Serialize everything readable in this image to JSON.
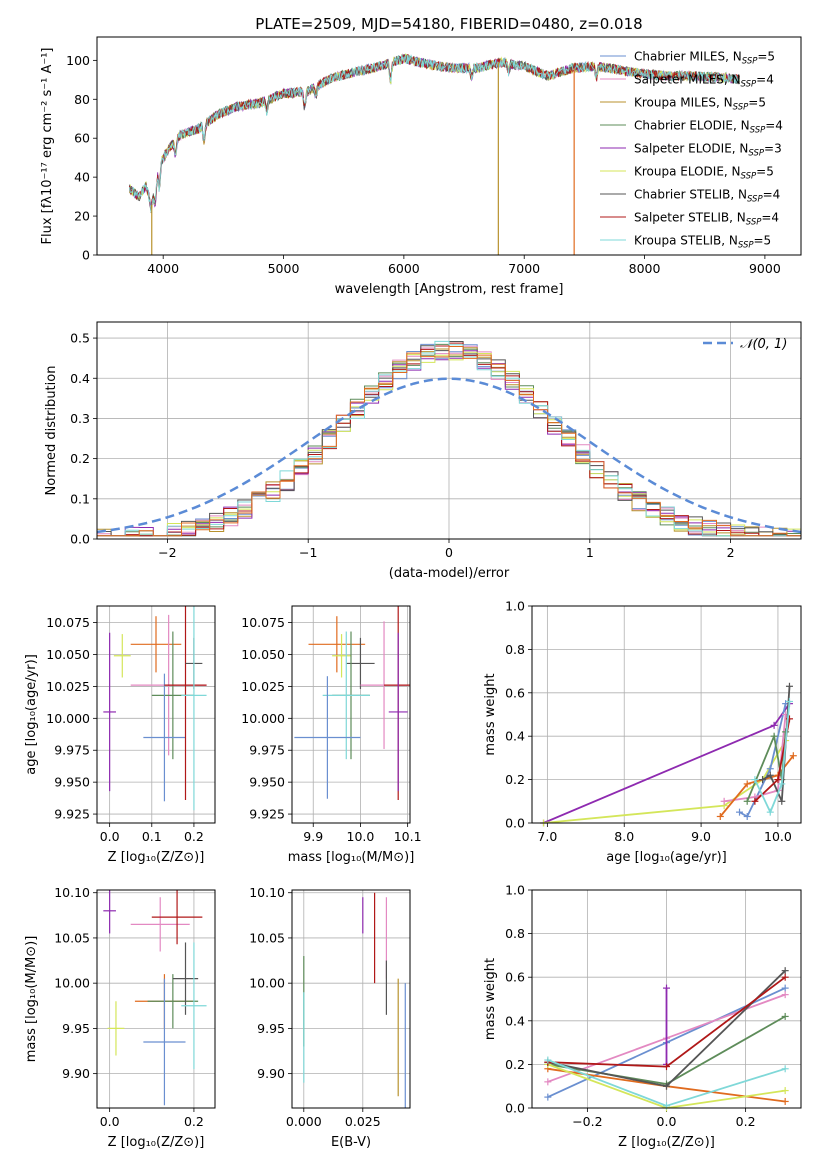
{
  "figure_title": "PLATE=2509, MJD=54180, FIBERID=0480, z=0.018",
  "colors": {
    "Chabrier MILES": "#6a8fd0",
    "Salpeter MILES": "#e389c2",
    "Kroupa MILES": "#b8922e",
    "Chabrier ELODIE": "#5e8c5a",
    "Salpeter ELODIE": "#8e2ab0",
    "Kroupa ELODIE": "#d4e65a",
    "Chabrier STELIB": "#555555",
    "Salpeter STELIB": "#b01818",
    "Kroupa STELIB": "#7fd8d8",
    "extra": "#e06b1f",
    "normal": "#5b8bd6"
  },
  "chart_data": [
    {
      "id": "spectrum",
      "type": "line",
      "title": "PLATE=2509, MJD=54180, FIBERID=0480, z=0.018",
      "xlabel": "wavelength [Angstrom, rest frame]",
      "ylabel": "Flux [fλ10⁻¹⁷ erg cm⁻² s⁻¹ A⁻¹]",
      "xlim": [
        3450,
        9300
      ],
      "ylim": [
        0,
        112
      ],
      "xticks": [
        4000,
        5000,
        6000,
        7000,
        8000,
        9000
      ],
      "yticks": [
        0,
        20,
        40,
        60,
        80,
        100
      ],
      "grid": false,
      "legend": "top-right",
      "legend_entries": [
        {
          "name": "Chabrier MILES, N",
          "sub": "SSP",
          "n": "=5"
        },
        {
          "name": "Salpeter MILES, N",
          "sub": "SSP",
          "n": "=4"
        },
        {
          "name": "Kroupa MILES, N",
          "sub": "SSP",
          "n": "=5"
        },
        {
          "name": "Chabrier ELODIE, N",
          "sub": "SSP",
          "n": "=4"
        },
        {
          "name": "Salpeter ELODIE, N",
          "sub": "SSP",
          "n": "=3"
        },
        {
          "name": "Kroupa ELODIE, N",
          "sub": "SSP",
          "n": "=5"
        },
        {
          "name": "Chabrier STELIB, N",
          "sub": "SSP",
          "n": "=4"
        },
        {
          "name": "Salpeter STELIB, N",
          "sub": "SSP",
          "n": "=4"
        },
        {
          "name": "Kroupa STELIB, N",
          "sub": "SSP",
          "n": "=5"
        }
      ],
      "continuum": [
        [
          3720,
          34
        ],
        [
          3800,
          30
        ],
        [
          3860,
          36
        ],
        [
          3900,
          24
        ],
        [
          3960,
          45
        ],
        [
          4050,
          55
        ],
        [
          4150,
          62
        ],
        [
          4300,
          65
        ],
        [
          4450,
          72
        ],
        [
          4600,
          76
        ],
        [
          4800,
          78
        ],
        [
          5000,
          83
        ],
        [
          5200,
          84
        ],
        [
          5400,
          91
        ],
        [
          5600,
          94
        ],
        [
          5800,
          97
        ],
        [
          6000,
          101
        ],
        [
          6200,
          98
        ],
        [
          6400,
          96
        ],
        [
          6600,
          96
        ],
        [
          6800,
          99
        ],
        [
          7000,
          97
        ],
        [
          7200,
          92
        ],
        [
          7400,
          96
        ],
        [
          7600,
          97
        ],
        [
          7800,
          95
        ],
        [
          8000,
          93
        ],
        [
          8200,
          92
        ],
        [
          8400,
          92
        ],
        [
          8700,
          91
        ],
        [
          8790,
          90
        ]
      ],
      "drops": [
        {
          "x": 3905,
          "color": "#b8922e"
        },
        {
          "x": 6785,
          "color": "#b8922e"
        },
        {
          "x": 7415,
          "color": "#e06b1f"
        }
      ]
    },
    {
      "id": "residuals",
      "type": "histogram",
      "xlabel": "(data-model)/error",
      "ylabel": "Normed distribution",
      "xlim": [
        -2.5,
        2.5
      ],
      "ylim": [
        0,
        0.54
      ],
      "xticks": [
        -2,
        -1,
        0,
        1,
        2
      ],
      "yticks": [
        0.0,
        0.1,
        0.2,
        0.3,
        0.4,
        0.5
      ],
      "grid": true,
      "legend": "top-right",
      "legend_entry": "𝒩(0, 1)",
      "bin_width": 0.1,
      "bin_start": -2.5
    },
    {
      "id": "age-vs-Z",
      "type": "scatter",
      "xlabel": "Z [log₁₀(Z/Z⊙)]",
      "ylabel": "age  [log₁₀(age/yr)]",
      "xlim": [
        -0.03,
        0.25
      ],
      "ylim": [
        9.918,
        10.088
      ],
      "xticks": [
        0.0,
        0.1,
        0.2
      ],
      "yticks": [
        9.925,
        9.95,
        9.975,
        10.0,
        10.025,
        10.05,
        10.075
      ],
      "points": [
        {
          "x": 0.0,
          "y": 10.005,
          "xerr": 0.015,
          "yerr": 0.062,
          "color": "Salpeter ELODIE"
        },
        {
          "x": 0.03,
          "y": 10.049,
          "xerr": 0.02,
          "yerr": 0.017,
          "color": "Kroupa ELODIE"
        },
        {
          "x": 0.11,
          "y": 10.058,
          "xerr": 0.06,
          "yerr": 0.022,
          "color": "extra"
        },
        {
          "x": 0.14,
          "y": 10.026,
          "xerr": 0.09,
          "yerr": 0.055,
          "color": "Salpeter MILES"
        },
        {
          "x": 0.15,
          "y": 10.018,
          "xerr": 0.05,
          "yerr": 0.05,
          "color": "Chabrier ELODIE"
        },
        {
          "x": 0.13,
          "y": 9.985,
          "xerr": 0.05,
          "yerr": 0.05,
          "color": "Chabrier MILES"
        },
        {
          "x": 0.18,
          "y": 10.026,
          "xerr": 0.05,
          "yerr": 0.09,
          "color": "Salpeter STELIB"
        },
        {
          "x": 0.2,
          "y": 10.043,
          "xerr": 0.02,
          "yerr": 0.02,
          "color": "Chabrier STELIB"
        },
        {
          "x": 0.2,
          "y": 10.018,
          "xerr": 0.03,
          "yerr": 0.09,
          "color": "Kroupa STELIB"
        }
      ]
    },
    {
      "id": "age-vs-mass",
      "type": "scatter",
      "xlabel": "mass [log₁₀(M/M⊙)]",
      "xlim": [
        9.855,
        10.105
      ],
      "ylim": [
        9.918,
        10.088
      ],
      "xticks": [
        9.9,
        10.0,
        10.1
      ],
      "xticklabels": [
        "9.9",
        "10.0",
        "10.1"
      ],
      "yticks": [
        9.925,
        9.95,
        9.975,
        10.0,
        10.025,
        10.05,
        10.075
      ],
      "points": [
        {
          "x": 9.95,
          "y": 10.058,
          "xerr": 0.06,
          "yerr": 0.022,
          "color": "extra"
        },
        {
          "x": 9.96,
          "y": 10.049,
          "xerr": 0.02,
          "yerr": 0.017,
          "color": "Kroupa ELODIE"
        },
        {
          "x": 10.0,
          "y": 10.043,
          "xerr": 0.03,
          "yerr": 0.02,
          "color": "Chabrier STELIB"
        },
        {
          "x": 10.05,
          "y": 10.026,
          "xerr": 0.05,
          "yerr": 0.05,
          "color": "Salpeter MILES"
        },
        {
          "x": 9.98,
          "y": 10.018,
          "xerr": 0.04,
          "yerr": 0.05,
          "color": "Chabrier ELODIE"
        },
        {
          "x": 9.97,
          "y": 10.018,
          "xerr": 0.05,
          "yerr": 0.05,
          "color": "Kroupa STELIB"
        },
        {
          "x": 10.08,
          "y": 10.026,
          "xerr": 0.03,
          "yerr": 0.09,
          "color": "Salpeter STELIB"
        },
        {
          "x": 10.08,
          "y": 10.005,
          "xerr": 0.02,
          "yerr": 0.062,
          "color": "Salpeter ELODIE"
        },
        {
          "x": 9.93,
          "y": 9.985,
          "xerr": 0.07,
          "yerr": 0.048,
          "color": "Chabrier MILES"
        }
      ]
    },
    {
      "id": "weight-vs-age",
      "type": "line",
      "xlabel": "age  [log₁₀(age/yr)]",
      "ylabel": "mass weight",
      "xlim": [
        6.8,
        10.3
      ],
      "ylim": [
        0,
        1.0
      ],
      "xticks": [
        7,
        8,
        9,
        10
      ],
      "yticks": [
        0.0,
        0.2,
        0.4,
        0.6,
        0.8,
        1.0
      ],
      "grid": true,
      "series": [
        {
          "color": "Salpeter ELODIE",
          "x": [
            6.95,
            9.95,
            10.15
          ],
          "y": [
            0.0,
            0.45,
            0.55
          ]
        },
        {
          "color": "Kroupa ELODIE",
          "x": [
            6.95,
            9.3,
            9.8,
            10.1
          ],
          "y": [
            0.0,
            0.08,
            0.2,
            0.38
          ]
        },
        {
          "color": "Chabrier MILES",
          "x": [
            9.5,
            9.6,
            9.9,
            10.1
          ],
          "y": [
            0.05,
            0.03,
            0.25,
            0.55
          ]
        },
        {
          "color": "Salpeter MILES",
          "x": [
            9.3,
            9.7,
            10.0,
            10.1
          ],
          "y": [
            0.1,
            0.12,
            0.15,
            0.5
          ]
        },
        {
          "color": "extra",
          "x": [
            9.25,
            9.6,
            10.0,
            10.2
          ],
          "y": [
            0.03,
            0.18,
            0.22,
            0.31
          ]
        },
        {
          "color": "Chabrier ELODIE",
          "x": [
            9.6,
            9.95,
            10.05,
            10.1
          ],
          "y": [
            0.1,
            0.4,
            0.2,
            0.42
          ]
        },
        {
          "color": "Chabrier STELIB",
          "x": [
            9.8,
            9.9,
            10.05,
            10.15
          ],
          "y": [
            0.2,
            0.22,
            0.1,
            0.63
          ]
        },
        {
          "color": "Salpeter STELIB",
          "x": [
            9.7,
            10.0,
            10.15
          ],
          "y": [
            0.1,
            0.2,
            0.48
          ]
        },
        {
          "color": "Kroupa STELIB",
          "x": [
            9.7,
            9.9,
            10.05,
            10.15
          ],
          "y": [
            0.2,
            0.05,
            0.18,
            0.56
          ]
        }
      ]
    },
    {
      "id": "mass-vs-Z",
      "type": "scatter",
      "xlabel": "Z [log₁₀(Z/Z⊙)]",
      "ylabel": "mass [log₁₀(M/M⊙)]",
      "xlim": [
        -0.03,
        0.25
      ],
      "ylim": [
        9.862,
        10.103
      ],
      "xticks": [
        0.0,
        0.2
      ],
      "yticks": [
        9.9,
        9.95,
        10.0,
        10.05,
        10.1
      ],
      "points": [
        {
          "x": 0.0,
          "y": 10.08,
          "xerr": 0.015,
          "yerr": 0.025,
          "color": "Salpeter ELODIE"
        },
        {
          "x": 0.015,
          "y": 9.95,
          "xerr": 0.02,
          "yerr": 0.03,
          "color": "Kroupa ELODIE"
        },
        {
          "x": 0.12,
          "y": 10.065,
          "xerr": 0.07,
          "yerr": 0.03,
          "color": "Salpeter MILES"
        },
        {
          "x": 0.16,
          "y": 10.073,
          "xerr": 0.06,
          "yerr": 0.03,
          "color": "Salpeter STELIB"
        },
        {
          "x": 0.13,
          "y": 9.98,
          "xerr": 0.07,
          "yerr": 0.03,
          "color": "extra"
        },
        {
          "x": 0.15,
          "y": 9.98,
          "xerr": 0.06,
          "yerr": 0.03,
          "color": "Chabrier ELODIE"
        },
        {
          "x": 0.18,
          "y": 10.005,
          "xerr": 0.03,
          "yerr": 0.04,
          "color": "Chabrier STELIB"
        },
        {
          "x": 0.2,
          "y": 9.975,
          "xerr": 0.03,
          "yerr": 0.07,
          "color": "Kroupa STELIB"
        },
        {
          "x": 0.13,
          "y": 9.935,
          "xerr": 0.05,
          "yerr": 0.07,
          "color": "Chabrier MILES"
        }
      ]
    },
    {
      "id": "mass-vs-ebv",
      "type": "scatter",
      "xlabel": "E(B-V)",
      "xlim": [
        -0.005,
        0.045
      ],
      "ylim": [
        9.862,
        10.103
      ],
      "xticks": [
        0.0,
        0.025
      ],
      "xticklabels": [
        "0.000",
        "0.025"
      ],
      "yticks": [
        9.9,
        9.95,
        10.0,
        10.05,
        10.1
      ],
      "points": [
        {
          "x": 0.0,
          "y": 9.98,
          "xerr": 0.0,
          "yerr": 0.05,
          "color": "Chabrier ELODIE"
        },
        {
          "x": 0.0,
          "y": 9.94,
          "xerr": 0.0,
          "yerr": 0.05,
          "color": "Kroupa STELIB"
        },
        {
          "x": 0.025,
          "y": 10.075,
          "xerr": 0.0,
          "yerr": 0.02,
          "color": "Salpeter ELODIE"
        },
        {
          "x": 0.03,
          "y": 10.05,
          "xerr": 0.0,
          "yerr": 0.05,
          "color": "Salpeter STELIB"
        },
        {
          "x": 0.035,
          "y": 10.05,
          "xerr": 0.0,
          "yerr": 0.045,
          "color": "Salpeter MILES"
        },
        {
          "x": 0.035,
          "y": 9.995,
          "xerr": 0.0,
          "yerr": 0.03,
          "color": "Chabrier STELIB"
        },
        {
          "x": 0.04,
          "y": 9.94,
          "xerr": 0.0,
          "yerr": 0.065,
          "color": "Kroupa MILES"
        },
        {
          "x": 0.043,
          "y": 9.93,
          "xerr": 0.0,
          "yerr": 0.07,
          "color": "Chabrier MILES"
        }
      ]
    },
    {
      "id": "weight-vs-Z",
      "type": "line",
      "xlabel": "Z [log₁₀(Z/Z⊙)]",
      "ylabel": "mass weight",
      "xlim": [
        -0.34,
        0.34
      ],
      "ylim": [
        0,
        1.0
      ],
      "xticks": [
        -0.2,
        0.0,
        0.2
      ],
      "xticklabels": [
        "−0.2",
        "0.0",
        "0.2"
      ],
      "yticks": [
        0.0,
        0.2,
        0.4,
        0.6,
        0.8,
        1.0
      ],
      "grid": true,
      "series": [
        {
          "color": "Chabrier MILES",
          "x": [
            -0.3,
            0.0,
            0.3
          ],
          "y": [
            0.05,
            0.3,
            0.55
          ]
        },
        {
          "color": "Salpeter MILES",
          "x": [
            -0.3,
            0.0,
            0.3
          ],
          "y": [
            0.12,
            0.32,
            0.52
          ]
        },
        {
          "color": "extra",
          "x": [
            -0.3,
            0.0,
            0.3
          ],
          "y": [
            0.18,
            0.1,
            0.03
          ]
        },
        {
          "color": "Chabrier ELODIE",
          "x": [
            -0.3,
            0.0,
            0.3
          ],
          "y": [
            0.2,
            0.11,
            0.42
          ]
        },
        {
          "color": "Salpeter ELODIE",
          "x": [
            0.0,
            0.0
          ],
          "y": [
            0.2,
            0.55
          ]
        },
        {
          "color": "Kroupa ELODIE",
          "x": [
            -0.3,
            0.0,
            0.3
          ],
          "y": [
            0.2,
            0.0,
            0.08
          ]
        },
        {
          "color": "Chabrier STELIB",
          "x": [
            -0.3,
            0.0,
            0.3
          ],
          "y": [
            0.21,
            0.1,
            0.63
          ]
        },
        {
          "color": "Salpeter STELIB",
          "x": [
            -0.3,
            0.0,
            0.3
          ],
          "y": [
            0.21,
            0.19,
            0.6
          ]
        },
        {
          "color": "Kroupa STELIB",
          "x": [
            -0.3,
            0.0,
            0.3
          ],
          "y": [
            0.22,
            0.01,
            0.18
          ]
        }
      ]
    }
  ]
}
